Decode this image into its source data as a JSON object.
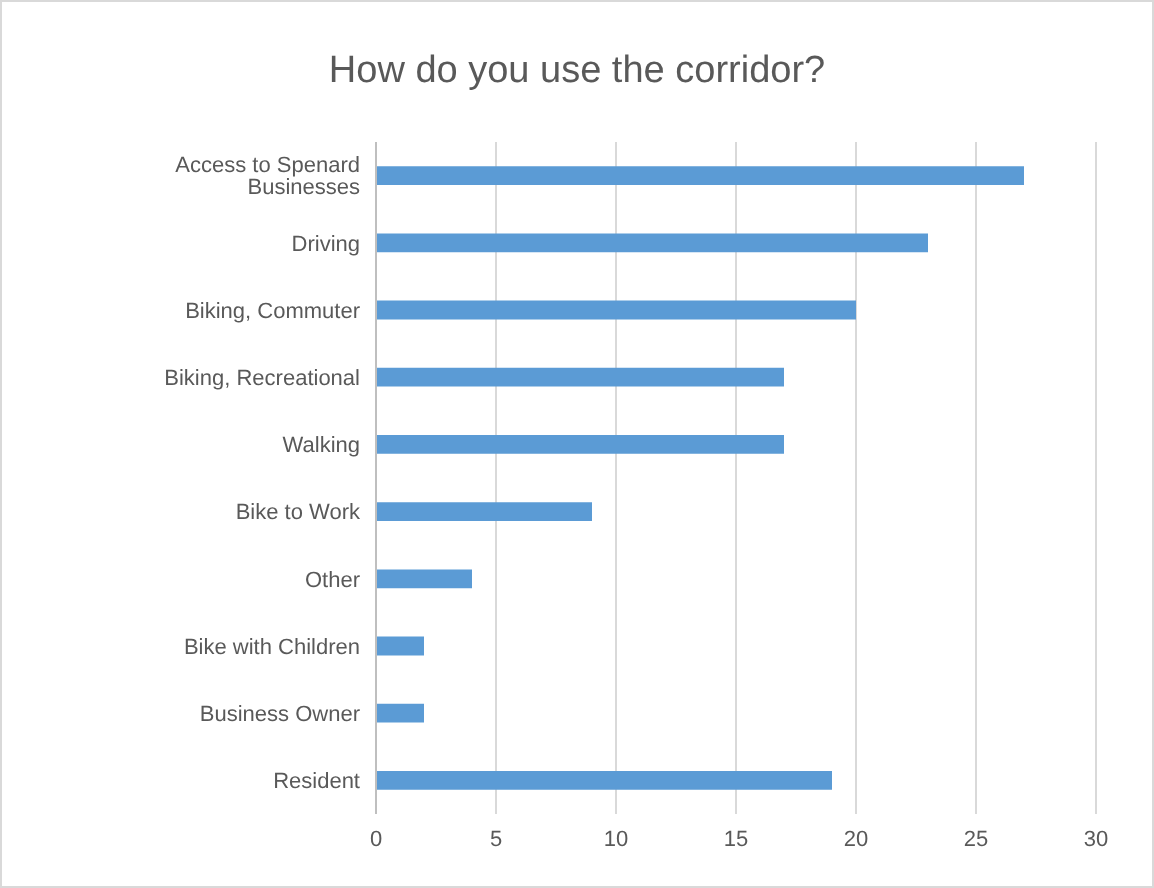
{
  "chart_data": {
    "type": "bar",
    "orientation": "horizontal",
    "title": "How do you use the corridor?",
    "categories": [
      "Access to Spenard Businesses",
      "Driving",
      "Biking, Commuter",
      "Biking, Recreational",
      "Walking",
      "Bike to Work",
      "Other",
      "Bike with Children",
      "Business Owner",
      "Resident"
    ],
    "values": [
      27,
      23,
      20,
      17,
      17,
      9,
      4,
      2,
      2,
      19
    ],
    "color": "#5b9bd5",
    "xlim": [
      0,
      30
    ],
    "xticks": [
      0,
      5,
      10,
      15,
      20,
      25,
      30
    ],
    "grid": "x"
  }
}
